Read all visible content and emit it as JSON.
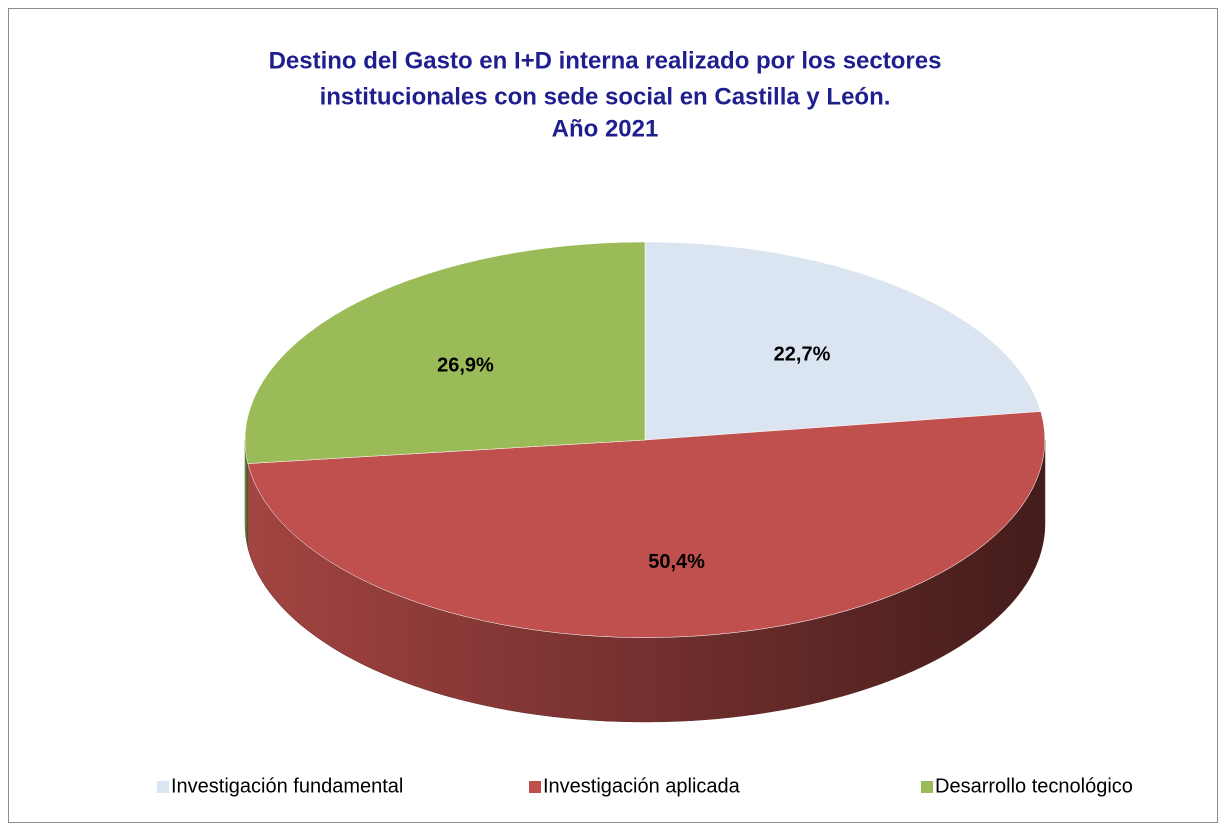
{
  "chart_data": {
    "type": "pie",
    "title": [
      "Destino del Gasto en I+D interna realizado por los sectores",
      "institucionales con sede social en Castilla y León.",
      "Año 2021"
    ],
    "categories": [
      "Investigación fundamental",
      "Investigación aplicada",
      "Desarrollo tecnológico"
    ],
    "values": [
      22.7,
      50.4,
      26.9
    ],
    "value_labels": [
      "22,7%",
      "50,4%",
      "26,9%"
    ],
    "colors": [
      "#dbe5f1",
      "#c0504d",
      "#9bbb59"
    ],
    "legend": "bottom"
  }
}
